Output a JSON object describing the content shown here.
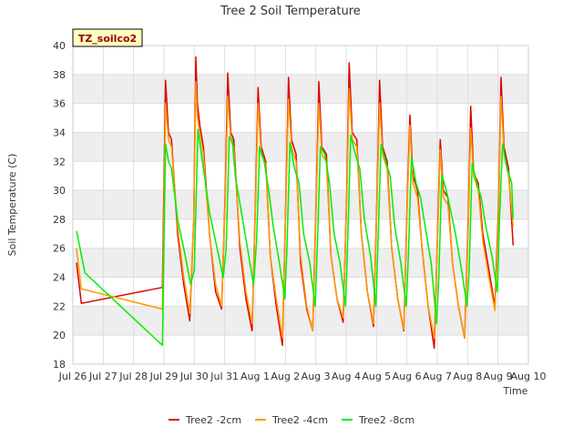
{
  "chart_data": {
    "type": "line",
    "title": "Tree 2 Soil Temperature",
    "xlabel": "Time",
    "ylabel": "Soil Temperature (C)",
    "ylim": [
      18,
      40
    ],
    "yticks": [
      18,
      20,
      22,
      24,
      26,
      28,
      30,
      32,
      34,
      36,
      38,
      40
    ],
    "xlim": [
      "2024-07-26",
      "2024-08-10"
    ],
    "xticks": [
      "Jul 26",
      "Jul 27",
      "Jul 28",
      "Jul 29",
      "Jul 30",
      "Jul 31",
      "Aug 1",
      "Aug 2",
      "Aug 3",
      "Aug 4",
      "Aug 5",
      "Aug 6",
      "Aug 7",
      "Aug 8",
      "Aug 9",
      "Aug 10"
    ],
    "x_units": "days from Jul 26",
    "grid": true,
    "alternating_bands": true,
    "annotation": "TZ_soilco2",
    "legend_position": "bottom-center",
    "series": [
      {
        "name": "Tree2 -2cm",
        "color": "#dd0000",
        "x": [
          0.12,
          0.28,
          2.95,
          3.05,
          3.15,
          3.25,
          3.45,
          3.65,
          3.85,
          3.98,
          4.05,
          4.1,
          4.18,
          4.3,
          4.5,
          4.7,
          4.9,
          5.02,
          5.1,
          5.2,
          5.3,
          5.5,
          5.7,
          5.9,
          6.02,
          6.1,
          6.2,
          6.35,
          6.5,
          6.7,
          6.9,
          7.02,
          7.1,
          7.2,
          7.35,
          7.5,
          7.7,
          7.9,
          8.02,
          8.1,
          8.2,
          8.35,
          8.5,
          8.7,
          8.9,
          9.02,
          9.1,
          9.2,
          9.35,
          9.5,
          9.7,
          9.9,
          10.02,
          10.1,
          10.2,
          10.35,
          10.5,
          10.7,
          10.9,
          11.02,
          11.1,
          11.2,
          11.35,
          11.5,
          11.7,
          11.9,
          12.02,
          12.1,
          12.2,
          12.35,
          12.5,
          12.7,
          12.9,
          13.02,
          13.1,
          13.2,
          13.35,
          13.5,
          13.7,
          13.9,
          14.02,
          14.1,
          14.2,
          14.35,
          14.5
        ],
        "y": [
          25.0,
          22.2,
          23.3,
          37.6,
          34.0,
          33.5,
          27.0,
          23.5,
          21.0,
          28.0,
          39.2,
          36.0,
          34.5,
          33.0,
          27.0,
          23.0,
          21.8,
          30.0,
          38.1,
          34.0,
          33.5,
          26.0,
          22.5,
          20.3,
          30.0,
          37.1,
          33.0,
          32.0,
          25.5,
          22.0,
          19.3,
          30.0,
          37.8,
          33.5,
          32.5,
          25.0,
          21.8,
          20.3,
          30.0,
          37.5,
          33.0,
          32.5,
          25.5,
          22.5,
          20.9,
          30.0,
          38.8,
          34.0,
          33.5,
          27.0,
          23.0,
          20.6,
          30.0,
          37.6,
          33.0,
          32.0,
          26.0,
          22.5,
          20.3,
          30.0,
          35.2,
          31.0,
          30.0,
          26.0,
          22.0,
          19.1,
          28.0,
          33.5,
          30.0,
          29.5,
          25.0,
          22.0,
          19.8,
          28.0,
          35.8,
          31.2,
          30.5,
          27.0,
          24.5,
          22.0,
          29.0,
          37.8,
          33.0,
          31.5,
          26.2
        ]
      },
      {
        "name": "Tree2 -4cm",
        "color": "#ff9900",
        "x": [
          0.12,
          0.28,
          2.95,
          3.05,
          3.15,
          3.25,
          3.45,
          3.65,
          3.85,
          3.98,
          4.05,
          4.1,
          4.18,
          4.3,
          4.5,
          4.7,
          4.9,
          5.02,
          5.1,
          5.2,
          5.3,
          5.5,
          5.7,
          5.9,
          6.02,
          6.1,
          6.2,
          6.35,
          6.5,
          6.7,
          6.9,
          7.02,
          7.1,
          7.2,
          7.35,
          7.5,
          7.7,
          7.9,
          8.02,
          8.1,
          8.2,
          8.35,
          8.5,
          8.7,
          8.9,
          9.02,
          9.1,
          9.2,
          9.35,
          9.5,
          9.7,
          9.9,
          10.02,
          10.1,
          10.2,
          10.35,
          10.5,
          10.7,
          10.9,
          11.02,
          11.1,
          11.2,
          11.35,
          11.5,
          11.7,
          11.9,
          12.02,
          12.1,
          12.2,
          12.35,
          12.5,
          12.7,
          12.9,
          13.02,
          13.1,
          13.2,
          13.35,
          13.5,
          13.7,
          13.9,
          14.02,
          14.1,
          14.2,
          14.35,
          14.5
        ],
        "y": [
          26.0,
          23.2,
          21.8,
          36.0,
          33.5,
          33.0,
          27.5,
          24.0,
          21.5,
          28.0,
          37.5,
          35.0,
          34.0,
          32.5,
          27.0,
          23.5,
          22.0,
          29.5,
          36.5,
          33.5,
          33.0,
          26.5,
          23.0,
          20.8,
          29.5,
          36.0,
          32.5,
          31.8,
          25.5,
          22.5,
          19.8,
          29.5,
          36.3,
          33.0,
          32.0,
          25.5,
          22.0,
          20.3,
          29.5,
          36.0,
          32.5,
          32.0,
          25.5,
          22.5,
          21.2,
          29.5,
          37.0,
          33.5,
          33.0,
          27.0,
          23.0,
          20.8,
          29.5,
          36.0,
          32.5,
          31.5,
          26.0,
          22.5,
          20.4,
          29.5,
          34.5,
          30.5,
          29.5,
          26.0,
          22.0,
          19.8,
          27.5,
          32.8,
          29.5,
          29.0,
          25.0,
          22.0,
          19.8,
          27.5,
          34.3,
          31.0,
          30.0,
          26.5,
          24.0,
          21.7,
          28.5,
          36.5,
          32.5,
          31.0,
          27.5
        ]
      },
      {
        "name": "Tree2 -8cm",
        "color": "#00ee00",
        "x": [
          0.12,
          0.4,
          2.95,
          3.05,
          3.15,
          3.25,
          3.45,
          3.7,
          3.88,
          4.0,
          4.12,
          4.2,
          4.3,
          4.5,
          4.75,
          4.95,
          5.05,
          5.15,
          5.25,
          5.35,
          5.55,
          5.75,
          5.95,
          6.05,
          6.15,
          6.3,
          6.45,
          6.6,
          6.8,
          6.98,
          7.05,
          7.15,
          7.3,
          7.45,
          7.6,
          7.8,
          7.98,
          8.05,
          8.15,
          8.3,
          8.45,
          8.6,
          8.8,
          8.98,
          9.05,
          9.15,
          9.3,
          9.45,
          9.6,
          9.8,
          9.98,
          10.05,
          10.15,
          10.3,
          10.45,
          10.6,
          10.8,
          10.98,
          11.05,
          11.15,
          11.3,
          11.45,
          11.6,
          11.8,
          11.98,
          12.05,
          12.15,
          12.3,
          12.45,
          12.6,
          12.8,
          12.98,
          13.05,
          13.15,
          13.3,
          13.45,
          13.6,
          13.8,
          13.98,
          14.05,
          14.15,
          14.3,
          14.45,
          14.5
        ],
        "y": [
          27.2,
          24.3,
          19.3,
          33.2,
          32.0,
          31.5,
          28.0,
          25.5,
          23.5,
          24.5,
          34.2,
          33.0,
          31.5,
          28.5,
          26.0,
          24.0,
          26.0,
          33.7,
          33.5,
          31.0,
          28.5,
          26.0,
          23.5,
          26.5,
          33.0,
          32.0,
          30.0,
          27.5,
          25.0,
          22.5,
          26.0,
          33.3,
          31.5,
          30.5,
          27.0,
          25.0,
          22.0,
          26.0,
          33.0,
          32.5,
          30.5,
          27.0,
          25.0,
          22.0,
          26.5,
          33.8,
          32.5,
          31.5,
          28.0,
          25.5,
          22.0,
          26.5,
          33.2,
          32.0,
          31.0,
          27.5,
          25.0,
          22.0,
          25.5,
          32.3,
          30.5,
          29.5,
          27.5,
          25.0,
          20.8,
          24.0,
          31.1,
          30.0,
          28.5,
          27.0,
          24.5,
          22.0,
          24.5,
          31.9,
          30.5,
          29.5,
          27.5,
          25.5,
          23.0,
          28.0,
          33.2,
          31.5,
          30.5,
          28.0
        ]
      }
    ]
  }
}
